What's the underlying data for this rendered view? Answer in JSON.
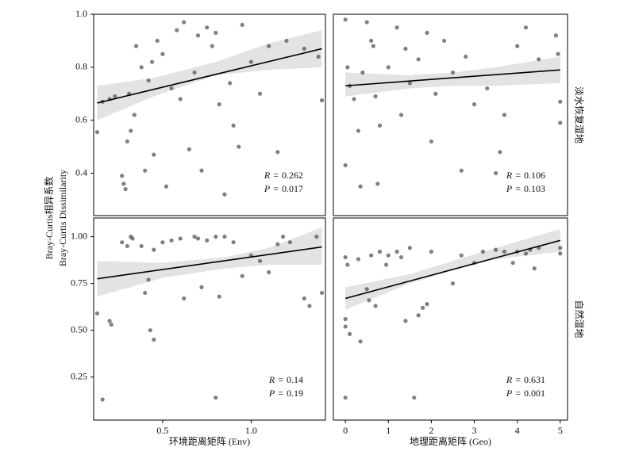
{
  "ylabel": [
    "Bray-Curtis相异系数",
    "Bray-Curtis Dissimilarity"
  ],
  "chart_data": [
    {
      "type": "scatter",
      "facet": null,
      "color": "#555555",
      "xlim": [
        0.11,
        1.42
      ],
      "ylim": [
        0.24,
        1.0
      ],
      "yticks": [
        0.4,
        0.6,
        0.8,
        {
          "value": 1.0,
          "label": "1.0"
        }
      ],
      "x": [
        0.13,
        0.16,
        0.2,
        0.23,
        0.27,
        0.28,
        0.29,
        0.3,
        0.31,
        0.32,
        0.34,
        0.35,
        0.38,
        0.4,
        0.42,
        0.44,
        0.45,
        0.47,
        0.5,
        0.52,
        0.55,
        0.58,
        0.6,
        0.62,
        0.65,
        0.68,
        0.7,
        0.72,
        0.75,
        0.78,
        0.8,
        0.82,
        0.85,
        0.88,
        0.9,
        0.93,
        0.95,
        1.0,
        1.05,
        1.1,
        1.15,
        1.2,
        1.3,
        1.38,
        1.4
      ],
      "values": [
        0.555,
        0.67,
        0.68,
        0.69,
        0.39,
        0.36,
        0.34,
        0.52,
        0.7,
        0.56,
        0.62,
        0.88,
        0.8,
        0.41,
        0.75,
        0.82,
        0.47,
        0.9,
        0.85,
        0.35,
        0.72,
        0.94,
        0.68,
        0.97,
        0.49,
        0.78,
        0.92,
        0.41,
        0.95,
        0.88,
        0.93,
        0.66,
        0.32,
        0.74,
        0.58,
        0.5,
        0.96,
        0.82,
        0.7,
        0.88,
        0.48,
        0.9,
        0.87,
        0.84,
        0.675
      ],
      "fit": {
        "x": [
          0.13,
          1.4
        ],
        "y": [
          0.665,
          0.87
        ]
      },
      "ci": {
        "x": [
          0.13,
          0.45,
          0.8,
          1.1,
          1.4
        ],
        "lower": [
          0.6,
          0.69,
          0.77,
          0.79,
          0.8
        ],
        "upper": [
          0.73,
          0.76,
          0.82,
          0.89,
          0.94
        ]
      },
      "separator": "=",
      "stats": [
        {
          "symbol": "R",
          "value": 0.262
        },
        {
          "symbol": "P",
          "value": 0.017
        }
      ]
    },
    {
      "type": "scatter",
      "facet": "淡水恢复湿地",
      "color": "#555555",
      "xlim": [
        -0.28,
        5.17
      ],
      "ylim": [
        0.24,
        1.0
      ],
      "x": [
        0,
        0,
        0.05,
        0.1,
        0.2,
        0.3,
        0.35,
        0.4,
        0.5,
        0.6,
        0.65,
        0.7,
        0.75,
        0.8,
        1.0,
        1.2,
        1.3,
        1.4,
        1.5,
        1.7,
        1.9,
        2.0,
        2.1,
        2.3,
        2.5,
        2.7,
        2.8,
        3.0,
        3.3,
        3.5,
        3.6,
        3.7,
        4.0,
        4.2,
        4.5,
        4.9,
        5.0,
        5.0,
        4.95
      ],
      "values": [
        0.98,
        0.43,
        0.8,
        0.73,
        0.68,
        0.56,
        0.35,
        0.78,
        0.97,
        0.9,
        0.88,
        0.69,
        0.36,
        0.58,
        0.8,
        0.95,
        0.62,
        0.87,
        0.74,
        0.83,
        0.93,
        0.52,
        0.7,
        0.9,
        0.78,
        0.41,
        0.84,
        0.66,
        0.72,
        0.4,
        0.48,
        0.62,
        0.88,
        0.95,
        0.83,
        0.92,
        0.67,
        0.59,
        0.85
      ],
      "fit": {
        "x": [
          0,
          5
        ],
        "y": [
          0.73,
          0.79
        ]
      },
      "ci": {
        "x": [
          0,
          1.5,
          2.5,
          3.5,
          5
        ],
        "lower": [
          0.69,
          0.72,
          0.73,
          0.73,
          0.74
        ],
        "upper": [
          0.78,
          0.77,
          0.78,
          0.8,
          0.84
        ]
      },
      "separator": "=",
      "stats": [
        {
          "symbol": "R",
          "value": 0.106
        },
        {
          "symbol": "P",
          "value": 0.103
        }
      ]
    },
    {
      "type": "scatter",
      "facet": null,
      "color": "#555555",
      "xlim": [
        0.11,
        1.42
      ],
      "ylim": [
        0.02,
        1.1
      ],
      "yticks": [
        {
          "value": 0.25,
          "label": "0.25"
        },
        {
          "value": 0.5,
          "label": "0.50"
        },
        {
          "value": 0.75,
          "label": "0.75"
        },
        {
          "value": 1.0,
          "label": "1.00"
        }
      ],
      "xticks": [
        0.5,
        {
          "value": 1.0,
          "label": "1.0"
        }
      ],
      "xlabel": "环境距离矩阵 (Env)",
      "x": [
        0.13,
        0.16,
        0.2,
        0.21,
        0.27,
        0.3,
        0.32,
        0.33,
        0.38,
        0.4,
        0.42,
        0.43,
        0.45,
        0.45,
        0.5,
        0.55,
        0.6,
        0.62,
        0.68,
        0.7,
        0.72,
        0.75,
        0.8,
        0.8,
        0.82,
        0.85,
        0.9,
        0.95,
        1.0,
        1.05,
        1.1,
        1.15,
        1.18,
        1.22,
        1.3,
        1.33,
        1.37,
        1.4
      ],
      "values": [
        0.59,
        0.13,
        0.55,
        0.53,
        0.97,
        0.95,
        1.0,
        0.99,
        0.95,
        0.7,
        0.77,
        0.5,
        0.45,
        0.93,
        0.97,
        0.98,
        0.99,
        0.67,
        1.0,
        0.99,
        0.73,
        0.98,
        0.14,
        1.0,
        0.68,
        1.0,
        0.97,
        0.79,
        0.9,
        0.87,
        0.81,
        0.96,
        1.0,
        0.97,
        0.67,
        0.63,
        1.0,
        0.7
      ],
      "fit": {
        "x": [
          0.13,
          1.4
        ],
        "y": [
          0.775,
          0.945
        ]
      },
      "ci": {
        "x": [
          0.13,
          0.5,
          0.85,
          1.1,
          1.4
        ],
        "lower": [
          0.68,
          0.78,
          0.83,
          0.85,
          0.85
        ],
        "upper": [
          0.87,
          0.86,
          0.89,
          0.94,
          1.05
        ]
      },
      "separator": "=",
      "stats": [
        {
          "symbol": "R",
          "value": 0.14
        },
        {
          "symbol": "P",
          "value": 0.19
        }
      ]
    },
    {
      "type": "scatter",
      "facet": "自然湿地",
      "color": "#555555",
      "xlim": [
        -0.28,
        5.17
      ],
      "ylim": [
        0.02,
        1.1
      ],
      "xticks": [
        0,
        1,
        2,
        3,
        4,
        5
      ],
      "xlabel": "地理距离矩阵 (Geo)",
      "x": [
        0,
        0,
        0,
        0,
        0.05,
        0.1,
        0.3,
        0.35,
        0.5,
        0.55,
        0.6,
        0.7,
        0.8,
        0.95,
        1.0,
        1.2,
        1.3,
        1.4,
        1.5,
        1.6,
        1.7,
        1.8,
        1.9,
        2.0,
        2.5,
        2.7,
        3.0,
        3.2,
        3.5,
        3.7,
        3.9,
        4.0,
        4.2,
        4.3,
        4.4,
        4.5,
        5.0,
        5.0
      ],
      "values": [
        0.89,
        0.56,
        0.52,
        0.14,
        0.85,
        0.48,
        0.88,
        0.44,
        0.72,
        0.66,
        0.9,
        0.63,
        0.92,
        0.85,
        0.9,
        0.92,
        0.89,
        0.55,
        0.94,
        0.14,
        0.58,
        0.62,
        0.64,
        0.92,
        0.75,
        0.9,
        0.86,
        0.92,
        0.93,
        0.92,
        0.86,
        0.92,
        0.91,
        0.93,
        0.83,
        0.94,
        0.94,
        0.91
      ],
      "fit": {
        "x": [
          0,
          5
        ],
        "y": [
          0.67,
          0.98
        ]
      },
      "ci": {
        "x": [
          0,
          1.5,
          2.5,
          3.5,
          5
        ],
        "lower": [
          0.61,
          0.75,
          0.82,
          0.88,
          0.92
        ],
        "upper": [
          0.73,
          0.8,
          0.87,
          0.94,
          1.04
        ]
      },
      "separator": "=",
      "stats": [
        {
          "symbol": "R",
          "value": 0.631
        },
        {
          "symbol": "P",
          "value": 0.001
        }
      ]
    }
  ]
}
